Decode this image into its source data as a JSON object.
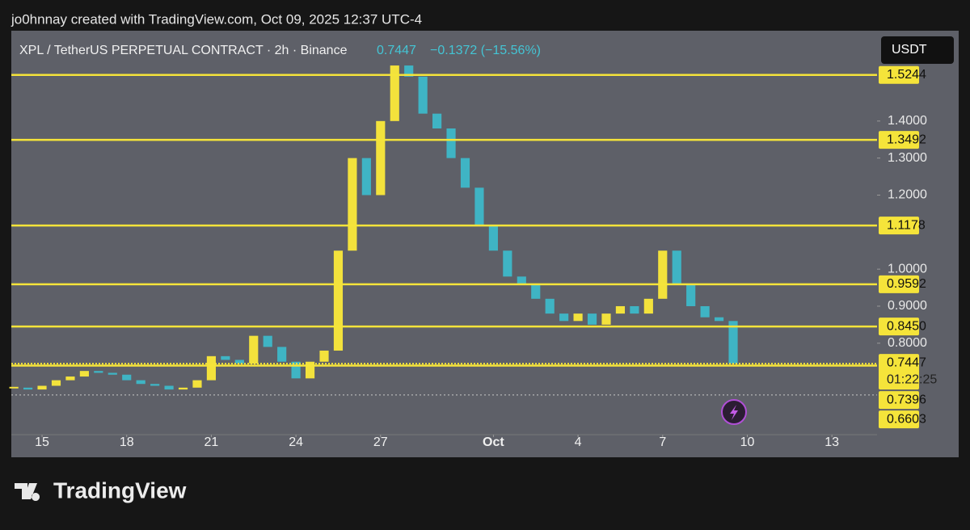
{
  "chart_data": {
    "type": "candlestick",
    "header": "jo0hnnay created with TradingView.com, Oct 09, 2025 12:37 UTC-4",
    "title": "XPL / TetherUS PERPETUAL CONTRACT · 2h · Binance",
    "last_price": 0.7447,
    "change_text": "−0.1372 (−15.56%)",
    "currency": "USDT",
    "countdown": "01:22:25",
    "brand": "TradingView",
    "up_color": "#f3e23c",
    "down_color": "#3fb4c4",
    "level_color": "#f5e43a",
    "x": [
      -1,
      -0.5,
      0,
      0.5,
      1,
      1.5,
      2,
      2.5,
      3,
      3.5,
      4,
      4.5,
      5,
      5.5,
      6,
      6.5,
      7,
      7.5,
      8,
      8.5,
      9,
      9.5,
      10,
      10.5,
      11,
      11.5,
      12,
      12.5,
      13,
      13.5,
      14,
      14.5,
      15,
      15.5,
      16,
      16.5,
      17,
      17.5,
      18,
      18.5,
      19,
      19.5,
      20,
      20.5,
      21,
      21.5,
      22,
      22.5,
      23,
      23.5,
      24,
      24.5
    ],
    "close": [
      0.68,
      0.675,
      0.685,
      0.7,
      0.71,
      0.725,
      0.72,
      0.715,
      0.7,
      0.69,
      0.685,
      0.675,
      0.68,
      0.7,
      0.765,
      0.755,
      0.745,
      0.82,
      0.79,
      0.75,
      0.705,
      0.75,
      0.78,
      1.05,
      1.3,
      1.2,
      1.4,
      1.55,
      1.52,
      1.42,
      1.38,
      1.3,
      1.22,
      1.12,
      1.05,
      0.98,
      0.96,
      0.92,
      0.88,
      0.86,
      0.88,
      0.85,
      0.88,
      0.9,
      0.88,
      0.92,
      1.05,
      0.96,
      0.9,
      0.87,
      0.86,
      0.745
    ],
    "xlim": [
      -1.09,
      29.6
    ],
    "xticks": [
      {
        "value": 0,
        "label": "15"
      },
      {
        "value": 3,
        "label": "18"
      },
      {
        "value": 6,
        "label": "21"
      },
      {
        "value": 9,
        "label": "24"
      },
      {
        "value": 12,
        "label": "27"
      },
      {
        "value": 16,
        "label": "Oct"
      },
      {
        "value": 19,
        "label": "4"
      },
      {
        "value": 22,
        "label": "7"
      },
      {
        "value": 25,
        "label": "10"
      },
      {
        "value": 28,
        "label": "13"
      }
    ],
    "ylim": [
      0.553,
      1.644
    ],
    "yticks": [
      {
        "value": 1.4,
        "label": "1.4000"
      },
      {
        "value": 1.3,
        "label": "1.3000"
      },
      {
        "value": 1.2,
        "label": "1.2000"
      },
      {
        "value": 1.0,
        "label": "1.0000"
      },
      {
        "value": 0.9,
        "label": "0.9000"
      },
      {
        "value": 0.8,
        "label": "0.8000"
      }
    ],
    "levels": [
      1.5244,
      1.3492,
      1.1178,
      {
        "value": 0.9592,
        "label": "0.9592"
      },
      {
        "value": 0.845,
        "label": "0.8450"
      },
      0.7396,
      0.6603
    ]
  }
}
